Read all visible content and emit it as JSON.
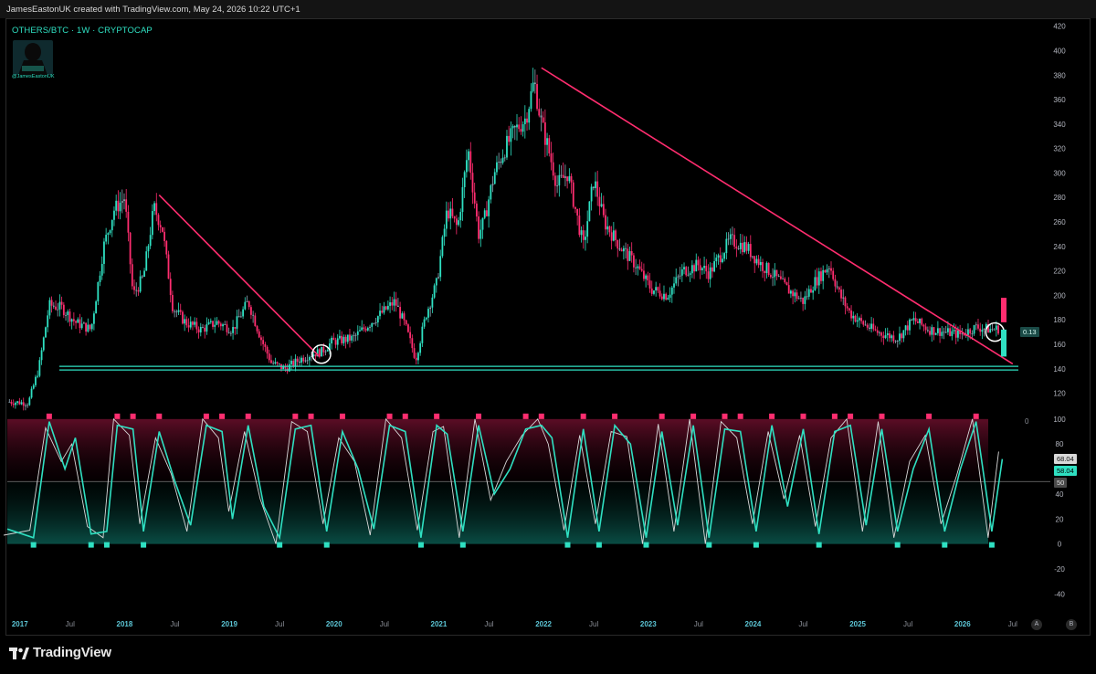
{
  "header": {
    "text": "JamesEastonUK created with TradingView.com, May 24, 2026 10:22 UTC+1"
  },
  "symbol": {
    "label": "OTHERS/BTC · 1W · CRYPTOCAP",
    "handle": "@JamesEastonUK"
  },
  "footer": {
    "brand": "TradingView"
  },
  "scale_buttons": {
    "a": "A",
    "b": "B"
  },
  "colors": {
    "bull": "#2fe0c2",
    "bear": "#ff2d6f",
    "neutral": "#8fa6b6",
    "trendline": "#ff2d6f",
    "support": "#2fe0c2"
  },
  "labels": {
    "price_tag": "0.13",
    "osc_tag_1": "68.04",
    "osc_tag_2": "58.04",
    "osc_tag_3": "50",
    "osc_zero_marker": "0"
  },
  "chart_data": [
    {
      "type": "candlestick",
      "title": "OTHERS/BTC · 1W · CRYPTOCAP",
      "x_ticks": [
        "2017",
        "Jul",
        "2018",
        "Jul",
        "2019",
        "Jul",
        "2020",
        "Jul",
        "2021",
        "Jul",
        "2022",
        "Jul",
        "2023",
        "Jul",
        "2024",
        "Jul",
        "2025",
        "Jul",
        "2026",
        "Jul"
      ],
      "y_ticks": [
        120,
        140,
        160,
        180,
        200,
        220,
        240,
        260,
        280,
        300,
        320,
        340,
        360,
        380,
        400,
        420
      ],
      "ylim": [
        107,
        425
      ],
      "xlim": [
        2016.9,
        2026.58
      ],
      "series": [
        {
          "x": [
            2016.92,
            2017.1,
            2017.2,
            2017.3,
            2017.42,
            2017.55,
            2017.7,
            2017.82,
            2017.92,
            2018.02,
            2018.1,
            2018.2,
            2018.3,
            2018.38,
            2018.48,
            2018.6,
            2018.75,
            2018.9,
            2019.05,
            2019.2,
            2019.32,
            2019.42,
            2019.55,
            2019.7,
            2019.8,
            2019.9,
            2020.0,
            2020.2,
            2020.4,
            2020.6,
            2020.7,
            2020.8,
            2020.9,
            2021.0,
            2021.1,
            2021.2,
            2021.3,
            2021.4,
            2021.45,
            2021.55,
            2021.65,
            2021.75,
            2021.85,
            2021.93,
            2022.0,
            2022.05,
            2022.15,
            2022.25,
            2022.4,
            2022.5,
            2022.6,
            2022.75,
            2022.9,
            2023.05,
            2023.2,
            2023.35,
            2023.5,
            2023.6,
            2023.8,
            2023.95,
            2024.1,
            2024.2,
            2024.35,
            2024.5,
            2024.6,
            2024.75,
            2024.85,
            2024.95,
            2025.05,
            2025.2,
            2025.4,
            2025.55,
            2025.7,
            2025.85,
            2026.0,
            2026.15,
            2026.3,
            2026.38
          ],
          "y": [
            113,
            112,
            140,
            192,
            190,
            178,
            172,
            240,
            270,
            280,
            200,
            215,
            272,
            255,
            190,
            178,
            172,
            178,
            172,
            195,
            165,
            145,
            140,
            148,
            152,
            154,
            162,
            165,
            180,
            195,
            175,
            148,
            185,
            210,
            270,
            255,
            320,
            250,
            260,
            300,
            320,
            335,
            345,
            375,
            340,
            325,
            290,
            300,
            240,
            295,
            260,
            240,
            225,
            205,
            200,
            220,
            225,
            218,
            245,
            240,
            225,
            218,
            205,
            195,
            210,
            225,
            200,
            185,
            178,
            170,
            165,
            180,
            172,
            170,
            168,
            174,
            172,
            173
          ]
        }
      ],
      "trendlines": [
        {
          "from": [
            "2018.35",
            282
          ],
          "to": [
            "2019.88",
            150
          ]
        },
        {
          "from": [
            "2022.0",
            386
          ],
          "to": [
            "2026.5",
            144
          ]
        }
      ],
      "support_levels": [
        142,
        139
      ]
    },
    {
      "type": "line",
      "title": "",
      "y_ticks": [
        -40,
        -20,
        0,
        20,
        40,
        60,
        80,
        100
      ],
      "ylim": [
        -50,
        105
      ],
      "reference_line": 50,
      "series": [
        {
          "name": "",
          "x": [
            2016.9,
            2017.15,
            2017.3,
            2017.45,
            2017.55,
            2017.7,
            2017.85,
            2017.95,
            2018.1,
            2018.2,
            2018.35,
            2018.5,
            2018.65,
            2018.8,
            2018.95,
            2019.05,
            2019.2,
            2019.35,
            2019.5,
            2019.65,
            2019.8,
            2019.95,
            2020.1,
            2020.25,
            2020.4,
            2020.55,
            2020.7,
            2020.85,
            2021.0,
            2021.1,
            2021.25,
            2021.4,
            2021.55,
            2021.7,
            2021.85,
            2022.0,
            2022.1,
            2022.25,
            2022.4,
            2022.55,
            2022.7,
            2022.85,
            2023.0,
            2023.15,
            2023.3,
            2023.45,
            2023.6,
            2023.75,
            2023.9,
            2024.05,
            2024.2,
            2024.35,
            2024.5,
            2024.65,
            2024.8,
            2024.95,
            2025.1,
            2025.25,
            2025.4,
            2025.55,
            2025.7,
            2025.85,
            2026.0,
            2026.15,
            2026.3,
            2026.4
          ],
          "values": [
            12,
            5,
            98,
            60,
            85,
            8,
            10,
            95,
            92,
            10,
            90,
            50,
            15,
            95,
            90,
            20,
            95,
            30,
            5,
            92,
            95,
            10,
            90,
            60,
            12,
            95,
            90,
            5,
            95,
            88,
            10,
            95,
            40,
            60,
            92,
            95,
            85,
            5,
            92,
            10,
            95,
            80,
            5,
            90,
            15,
            95,
            5,
            92,
            90,
            10,
            95,
            30,
            92,
            8,
            90,
            95,
            15,
            92,
            10,
            60,
            92,
            10,
            60,
            98,
            10,
            68
          ]
        }
      ]
    }
  ]
}
